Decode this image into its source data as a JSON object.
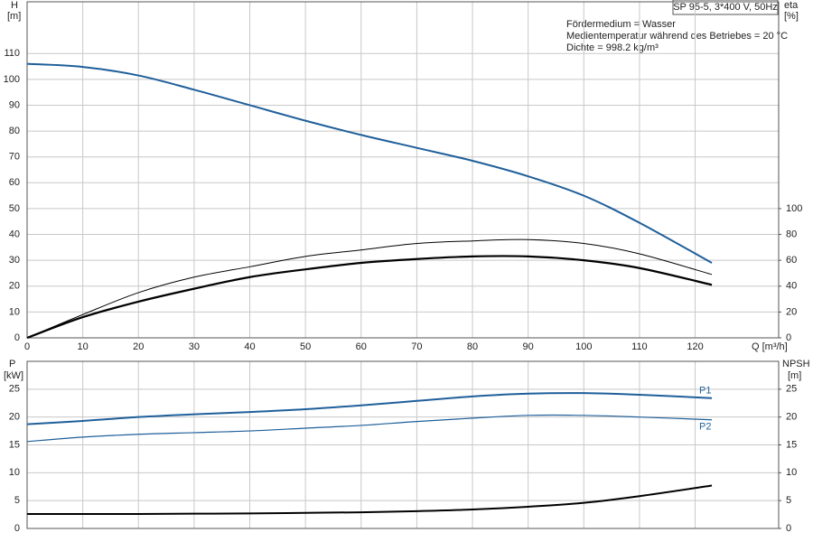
{
  "chart_data": [
    {
      "type": "line",
      "title": "SP 95-5, 3*400 V, 50Hz",
      "annotations": [
        "Fördermedium = Wasser",
        "Medientemperatur während des Betriebes = 20 °C",
        "Dichte = 998.2 kg/m³"
      ],
      "ylabel": [
        "H",
        "[m]"
      ],
      "y2label": [
        "eta",
        "[%]"
      ],
      "xlabel": "Q [m³/h]",
      "x": [
        0,
        10,
        20,
        30,
        40,
        50,
        60,
        70,
        80,
        90,
        100,
        110,
        123
      ],
      "xlim": [
        0,
        135
      ],
      "xticks": [
        0,
        10,
        20,
        30,
        40,
        50,
        60,
        70,
        80,
        90,
        100,
        110,
        120
      ],
      "ylim": [
        0,
        130
      ],
      "yticks": [
        0,
        10,
        20,
        30,
        40,
        50,
        60,
        70,
        80,
        90,
        100,
        110
      ],
      "y2lim": [
        0,
        260
      ],
      "y2ticks": [
        0,
        20,
        40,
        60,
        80,
        100
      ],
      "grid": true,
      "show_xtick_labels": true,
      "series": [
        {
          "color": "#1f5f9a",
          "width": 2,
          "values": [
            106,
            104.8,
            101.5,
            96,
            90,
            84,
            78.5,
            73.5,
            68.5,
            62.5,
            55,
            44.5,
            29
          ]
        },
        {
          "color": "#000000",
          "width": 1,
          "axis": "y2",
          "values": [
            0,
            18,
            35,
            47,
            55,
            63,
            68,
            73,
            75,
            76,
            73,
            65,
            49
          ]
        },
        {
          "color": "#000000",
          "width": 2.2,
          "axis": "y2",
          "values": [
            0,
            16,
            28,
            38,
            47,
            53,
            58,
            61,
            63,
            63,
            60,
            54,
            41
          ]
        }
      ]
    },
    {
      "type": "line",
      "ylabel": [
        "P",
        "[kW]"
      ],
      "y2label": [
        "NPSH",
        "[m]"
      ],
      "x": [
        0,
        10,
        20,
        30,
        40,
        50,
        60,
        70,
        80,
        90,
        100,
        110,
        123
      ],
      "xlim": [
        0,
        135
      ],
      "xticks": [
        0,
        10,
        20,
        30,
        40,
        50,
        60,
        70,
        80,
        90,
        100,
        110,
        120
      ],
      "ylim": [
        0,
        30
      ],
      "yticks": [
        0,
        5,
        10,
        15,
        20,
        25
      ],
      "y2lim": [
        0,
        30
      ],
      "y2ticks": [
        0,
        5,
        10,
        15,
        20,
        25
      ],
      "grid": true,
      "show_xtick_labels": false,
      "series": [
        {
          "name": "P1",
          "color": "#1f5f9a",
          "width": 2,
          "values": [
            18.7,
            19.3,
            20,
            20.5,
            20.9,
            21.4,
            22.1,
            22.9,
            23.7,
            24.2,
            24.3,
            24,
            23.4
          ]
        },
        {
          "name": "P2",
          "color": "#1f5f9a",
          "width": 1.2,
          "values": [
            15.6,
            16.4,
            16.9,
            17.2,
            17.5,
            18,
            18.5,
            19.2,
            19.8,
            20.3,
            20.3,
            20,
            19.5
          ]
        },
        {
          "color": "#000000",
          "width": 2,
          "axis": "y2",
          "values": [
            2.6,
            2.6,
            2.6,
            2.65,
            2.7,
            2.8,
            2.9,
            3.1,
            3.4,
            3.9,
            4.6,
            5.8,
            7.7
          ]
        }
      ]
    }
  ]
}
